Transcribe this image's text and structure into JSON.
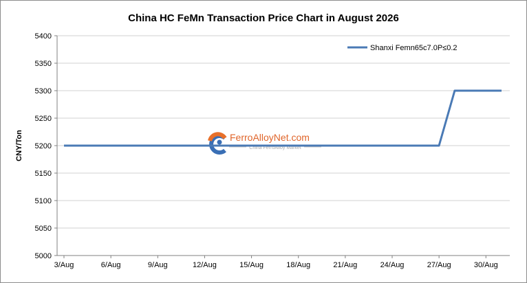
{
  "chart_data": {
    "type": "line",
    "title": "China HC FeMn Transaction Price Chart in August 2026",
    "xlabel": "",
    "ylabel": "CNY/Ton",
    "ylim": [
      5000,
      5400
    ],
    "yticks": [
      5000,
      5050,
      5100,
      5150,
      5200,
      5250,
      5300,
      5350,
      5400
    ],
    "categories": [
      "3/Aug",
      "4/Aug",
      "5/Aug",
      "6/Aug",
      "7/Aug",
      "8/Aug",
      "9/Aug",
      "10/Aug",
      "11/Aug",
      "12/Aug",
      "13/Aug",
      "14/Aug",
      "15/Aug",
      "16/Aug",
      "17/Aug",
      "18/Aug",
      "19/Aug",
      "20/Aug",
      "21/Aug",
      "22/Aug",
      "23/Aug",
      "24/Aug",
      "25/Aug",
      "26/Aug",
      "27/Aug",
      "28/Aug",
      "29/Aug",
      "30/Aug",
      "31/Aug"
    ],
    "tick_labels": [
      "3/Aug",
      "6/Aug",
      "9/Aug",
      "12/Aug",
      "15/Aug",
      "18/Aug",
      "21/Aug",
      "24/Aug",
      "27/Aug",
      "30/Aug"
    ],
    "series": [
      {
        "name": "Shanxi Femn65c7.0P≤0.2",
        "color": "#4a7ab5",
        "values": [
          5200,
          5200,
          5200,
          5200,
          5200,
          5200,
          5200,
          5200,
          5200,
          5200,
          5200,
          5200,
          5200,
          5200,
          5200,
          5200,
          5200,
          5200,
          5200,
          5200,
          5200,
          5200,
          5200,
          5200,
          5200,
          5300,
          5300,
          5300,
          5300
        ]
      }
    ],
    "grid": "horizontal",
    "legend_position": "top-right"
  },
  "watermark": {
    "brand": "FerroAlloyNet.com",
    "tagline": "China FerroAlloy Market"
  }
}
